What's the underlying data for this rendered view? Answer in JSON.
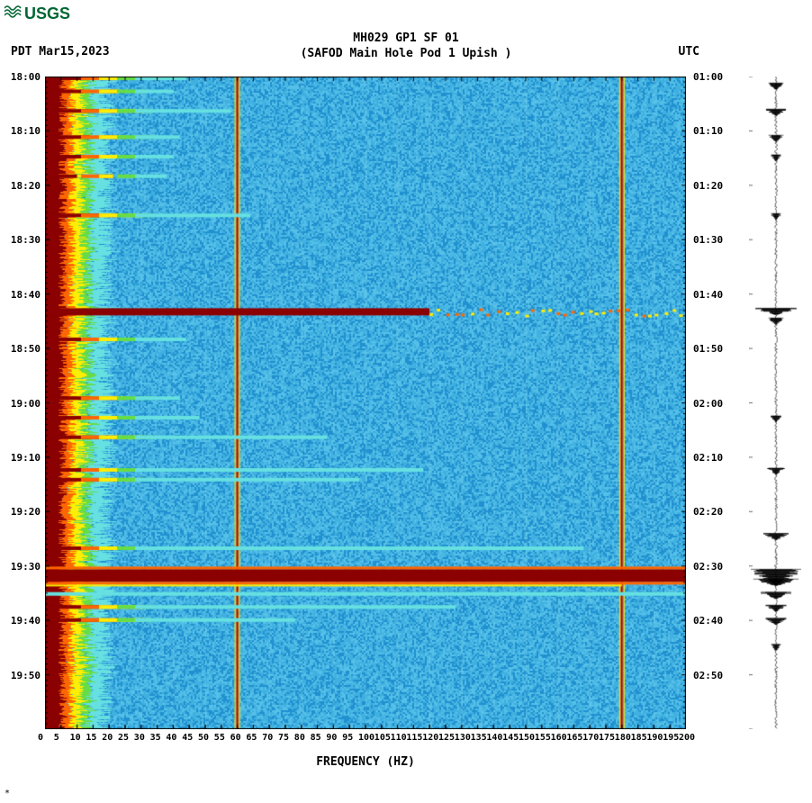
{
  "logo_text": "USGS",
  "title_line1": "MH029 GP1 SF 01",
  "title_line2": "(SAFOD Main Hole Pod 1 Upish )",
  "date_label": "PDT  Mar15,2023",
  "tz_right": "UTC",
  "x_axis_title": "FREQUENCY (HZ)",
  "colors": {
    "logo": "#006633",
    "bg_low": "#2090d0",
    "bg_mid": "#40b0e0",
    "band_hot": "#8b0000",
    "band_orange": "#ff6600",
    "band_yellow": "#ffee00",
    "band_green": "#66dd44",
    "band_cyan": "#66e0e0",
    "tick": "#000000"
  },
  "x_ticks": [
    0,
    5,
    10,
    15,
    20,
    25,
    30,
    35,
    40,
    45,
    50,
    55,
    60,
    65,
    70,
    75,
    80,
    85,
    90,
    95,
    100,
    105,
    110,
    115,
    120,
    125,
    130,
    135,
    140,
    145,
    150,
    155,
    160,
    165,
    170,
    175,
    180,
    185,
    190,
    195,
    200
  ],
  "y_left_ticks": [
    "18:00",
    "18:10",
    "18:20",
    "18:30",
    "18:40",
    "18:50",
    "19:00",
    "19:10",
    "19:20",
    "19:30",
    "19:40",
    "19:50"
  ],
  "y_right_ticks": [
    "01:00",
    "01:10",
    "01:20",
    "01:30",
    "01:40",
    "01:50",
    "02:00",
    "02:10",
    "02:20",
    "02:30",
    "02:40",
    "02:50"
  ],
  "vertical_bands_hz": [
    60,
    180
  ],
  "hot_rows": [
    {
      "t": 0.0,
      "width": 0.08,
      "intensity": 1.0
    },
    {
      "t": 0.02,
      "width": 0.06,
      "intensity": 0.9
    },
    {
      "t": 0.05,
      "width": 0.15,
      "intensity": 0.7
    },
    {
      "t": 0.09,
      "width": 0.07,
      "intensity": 0.8
    },
    {
      "t": 0.12,
      "width": 0.06,
      "intensity": 0.7
    },
    {
      "t": 0.15,
      "width": 0.05,
      "intensity": 0.6
    },
    {
      "t": 0.21,
      "width": 0.18,
      "intensity": 0.6
    },
    {
      "t": 0.355,
      "width": 0.6,
      "intensity": 1.0,
      "major": true
    },
    {
      "t": 0.4,
      "width": 0.08,
      "intensity": 0.7
    },
    {
      "t": 0.49,
      "width": 0.07,
      "intensity": 0.6
    },
    {
      "t": 0.52,
      "width": 0.1,
      "intensity": 0.7
    },
    {
      "t": 0.55,
      "width": 0.3,
      "intensity": 0.5
    },
    {
      "t": 0.6,
      "width": 0.45,
      "intensity": 0.6
    },
    {
      "t": 0.615,
      "width": 0.35,
      "intensity": 0.5
    },
    {
      "t": 0.72,
      "width": 0.7,
      "intensity": 0.7
    },
    {
      "t": 0.755,
      "width": 1.0,
      "intensity": 1.0,
      "major": true,
      "thick": true
    },
    {
      "t": 0.79,
      "width": 1.0,
      "intensity": 0.4,
      "cyan": true
    },
    {
      "t": 0.81,
      "width": 0.5,
      "intensity": 0.8
    },
    {
      "t": 0.83,
      "width": 0.25,
      "intensity": 0.9
    }
  ],
  "seismo_events": [
    {
      "t": 0.01,
      "amp": 0.3
    },
    {
      "t": 0.05,
      "amp": 0.4
    },
    {
      "t": 0.09,
      "amp": 0.3
    },
    {
      "t": 0.12,
      "amp": 0.2
    },
    {
      "t": 0.21,
      "amp": 0.2
    },
    {
      "t": 0.355,
      "amp": 0.8
    },
    {
      "t": 0.37,
      "amp": 0.3
    },
    {
      "t": 0.52,
      "amp": 0.2
    },
    {
      "t": 0.6,
      "amp": 0.3
    },
    {
      "t": 0.7,
      "amp": 0.5
    },
    {
      "t": 0.755,
      "amp": 1.0,
      "thick": true
    },
    {
      "t": 0.77,
      "amp": 0.9
    },
    {
      "t": 0.79,
      "amp": 0.6
    },
    {
      "t": 0.81,
      "amp": 0.4
    },
    {
      "t": 0.83,
      "amp": 0.4
    },
    {
      "t": 0.87,
      "amp": 0.2
    }
  ]
}
